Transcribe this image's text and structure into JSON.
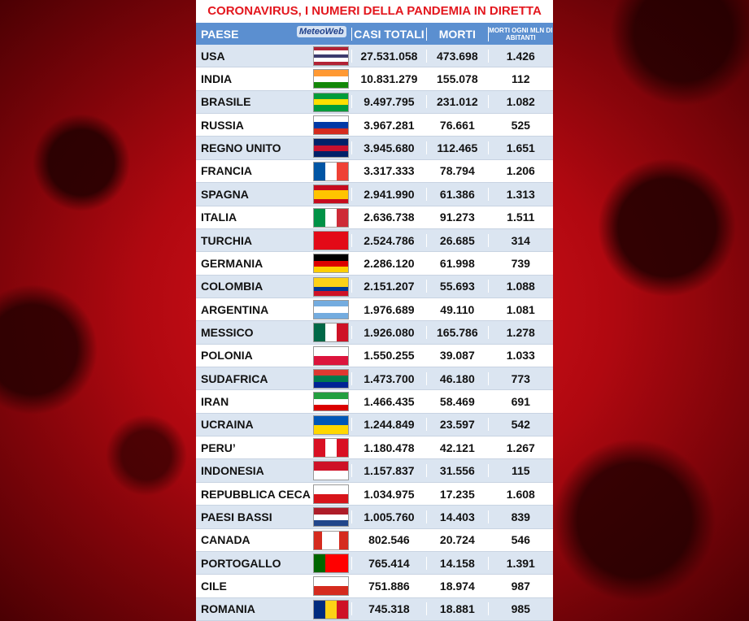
{
  "header": {
    "title": "CORONAVIRUS, I NUMERI DELLA PANDEMIA IN DIRETTA",
    "logo": "MeteoWeb"
  },
  "table": {
    "columns": [
      "PAESE",
      "CASI TOTALI",
      "MORTI",
      "MORTI OGNI MLN DI ABITANTI"
    ],
    "rows": [
      [
        "USA",
        "27.531.058",
        "473.698",
        "1.426"
      ],
      [
        "INDIA",
        "10.831.279",
        "155.078",
        "112"
      ],
      [
        "BRASILE",
        "9.497.795",
        "231.012",
        "1.082"
      ],
      [
        "RUSSIA",
        "3.967.281",
        "76.661",
        "525"
      ],
      [
        "REGNO UNITO",
        "3.945.680",
        "112.465",
        "1.651"
      ],
      [
        "FRANCIA",
        "3.317.333",
        "78.794",
        "1.206"
      ],
      [
        "SPAGNA",
        "2.941.990",
        "61.386",
        "1.313"
      ],
      [
        "ITALIA",
        "2.636.738",
        "91.273",
        "1.511"
      ],
      [
        "TURCHIA",
        "2.524.786",
        "26.685",
        "314"
      ],
      [
        "GERMANIA",
        "2.286.120",
        "61.998",
        "739"
      ],
      [
        "COLOMBIA",
        "2.151.207",
        "55.693",
        "1.088"
      ],
      [
        "ARGENTINA",
        "1.976.689",
        "49.110",
        "1.081"
      ],
      [
        "MESSICO",
        "1.926.080",
        "165.786",
        "1.278"
      ],
      [
        "POLONIA",
        "1.550.255",
        "39.087",
        "1.033"
      ],
      [
        "SUDAFRICA",
        "1.473.700",
        "46.180",
        "773"
      ],
      [
        "IRAN",
        "1.466.435",
        "58.469",
        "691"
      ],
      [
        "UCRAINA",
        "1.244.849",
        "23.597",
        "542"
      ],
      [
        "PERU’",
        "1.180.478",
        "42.121",
        "1.267"
      ],
      [
        "INDONESIA",
        "1.157.837",
        "31.556",
        "115"
      ],
      [
        "REPUBBLICA CECA",
        "1.034.975",
        "17.235",
        "1.608"
      ],
      [
        "PAESI BASSI",
        "1.005.760",
        "14.403",
        "839"
      ],
      [
        "CANADA",
        "802.546",
        "20.724",
        "546"
      ],
      [
        "PORTOGALLO",
        "765.414",
        "14.158",
        "1.391"
      ],
      [
        "CILE",
        "751.886",
        "18.974",
        "987"
      ],
      [
        "ROMANIA",
        "745.318",
        "18.881",
        "985"
      ]
    ]
  }
}
